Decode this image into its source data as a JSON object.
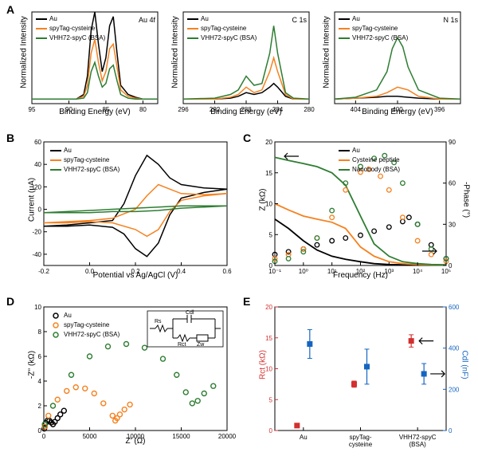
{
  "colors": {
    "au": "#000000",
    "spytag": "#f58220",
    "vhh72": "#2e7d32",
    "axis": "#000000",
    "rct": "#d32f2f",
    "cdl": "#1565c0",
    "bg": "#ffffff"
  },
  "fonts": {
    "label_size": 10,
    "tick_size": 8,
    "panel_label_size": 14,
    "legend_size": 8
  },
  "legend_labels": {
    "au": "Au",
    "spytag": "spyTag-cysteine",
    "vhh72": "VHH72-spyC (BSA)",
    "cysteine_peptide": "Cysteine peptide",
    "nanobody": "Nanobody (BSA)"
  },
  "panel_A1": {
    "label": "A",
    "type": "line",
    "title": "Au 4f",
    "xlabel": "Binding Energy (eV)",
    "ylabel": "Normalized Intensity",
    "xlim": [
      95,
      78
    ],
    "xticks": [
      95,
      90,
      85,
      80
    ],
    "series": [
      {
        "name": "au",
        "x": [
          95,
          92,
          89,
          88,
          87.5,
          87,
          86.5,
          86,
          85.5,
          85,
          84.5,
          84,
          83.5,
          83,
          82,
          81,
          80,
          78
        ],
        "y": [
          0.05,
          0.05,
          0.05,
          0.1,
          0.3,
          0.8,
          1.0,
          0.65,
          0.35,
          0.5,
          0.85,
          0.95,
          0.55,
          0.2,
          0.1,
          0.07,
          0.05,
          0.05
        ]
      },
      {
        "name": "spytag",
        "x": [
          95,
          92,
          89,
          88,
          87.5,
          87,
          86.5,
          86,
          85.5,
          85,
          84.5,
          84,
          83.5,
          83,
          82,
          81,
          80,
          78
        ],
        "y": [
          0.05,
          0.05,
          0.05,
          0.08,
          0.2,
          0.55,
          0.7,
          0.45,
          0.25,
          0.35,
          0.6,
          0.65,
          0.4,
          0.15,
          0.08,
          0.06,
          0.05,
          0.05
        ]
      },
      {
        "name": "vhh72",
        "x": [
          95,
          92,
          89,
          88,
          87.5,
          87,
          86.5,
          86,
          85.5,
          85,
          84.5,
          84,
          83.5,
          83,
          82,
          81,
          80,
          78
        ],
        "y": [
          0.05,
          0.05,
          0.05,
          0.06,
          0.12,
          0.35,
          0.45,
          0.3,
          0.18,
          0.22,
          0.38,
          0.42,
          0.25,
          0.1,
          0.06,
          0.05,
          0.05,
          0.05
        ]
      }
    ]
  },
  "panel_A2": {
    "type": "line",
    "title": "C 1s",
    "xlabel": "Binding Energy (eV)",
    "xlim": [
      296,
      280
    ],
    "xticks": [
      296,
      292,
      288,
      284,
      280
    ],
    "series": [
      {
        "name": "au",
        "x": [
          296,
          292,
          290,
          289,
          288,
          287,
          286,
          285,
          284.5,
          284,
          283,
          282,
          280
        ],
        "y": [
          0.05,
          0.05,
          0.06,
          0.08,
          0.12,
          0.1,
          0.12,
          0.18,
          0.22,
          0.18,
          0.08,
          0.05,
          0.05
        ]
      },
      {
        "name": "spytag",
        "x": [
          296,
          292,
          290,
          289,
          288,
          287,
          286,
          285,
          284.5,
          284,
          283,
          282,
          280
        ],
        "y": [
          0.05,
          0.05,
          0.07,
          0.1,
          0.18,
          0.12,
          0.15,
          0.35,
          0.5,
          0.35,
          0.1,
          0.05,
          0.05
        ]
      },
      {
        "name": "vhh72",
        "x": [
          296,
          292,
          290,
          289,
          288,
          287,
          286,
          285,
          284.5,
          284,
          283,
          282,
          280
        ],
        "y": [
          0.05,
          0.06,
          0.1,
          0.15,
          0.3,
          0.2,
          0.22,
          0.55,
          0.85,
          0.55,
          0.12,
          0.06,
          0.05
        ]
      }
    ]
  },
  "panel_A3": {
    "type": "line",
    "title": "N 1s",
    "xlabel": "Binding Energy (eV)",
    "xlim": [
      406,
      394
    ],
    "xticks": [
      404,
      400,
      396
    ],
    "series": [
      {
        "name": "au",
        "x": [
          406,
          404,
          402,
          401,
          400,
          399,
          398,
          396,
          394
        ],
        "y": [
          0.05,
          0.06,
          0.07,
          0.08,
          0.08,
          0.07,
          0.06,
          0.05,
          0.05
        ]
      },
      {
        "name": "spytag",
        "x": [
          406,
          404,
          402,
          401,
          400,
          399,
          398,
          396,
          394
        ],
        "y": [
          0.05,
          0.06,
          0.08,
          0.12,
          0.18,
          0.15,
          0.08,
          0.05,
          0.05
        ]
      },
      {
        "name": "vhh72",
        "x": [
          406,
          404,
          402,
          401,
          400.5,
          400,
          399.5,
          399,
          398,
          396,
          394
        ],
        "y": [
          0.05,
          0.07,
          0.15,
          0.35,
          0.6,
          0.72,
          0.62,
          0.4,
          0.15,
          0.06,
          0.05
        ]
      }
    ]
  },
  "panel_B": {
    "label": "B",
    "type": "line",
    "xlabel": "Potential vs Ag/AgCl (V)",
    "ylabel": "Current (µA)",
    "xlim": [
      -0.2,
      0.6
    ],
    "ylim": [
      -50,
      60
    ],
    "xticks": [
      -0.2,
      0.0,
      0.2,
      0.4,
      0.6
    ],
    "yticks": [
      -40,
      -20,
      0,
      20,
      40,
      60
    ],
    "series": [
      {
        "name": "au",
        "x": [
          -0.2,
          -0.1,
          0,
          0.1,
          0.15,
          0.2,
          0.25,
          0.3,
          0.35,
          0.4,
          0.5,
          0.6,
          0.5,
          0.4,
          0.35,
          0.3,
          0.25,
          0.2,
          0.15,
          0.1,
          0,
          -0.1,
          -0.2
        ],
        "y": [
          -15,
          -14,
          -12,
          -10,
          5,
          30,
          48,
          40,
          28,
          22,
          19,
          18,
          15,
          10,
          -5,
          -30,
          -42,
          -35,
          -22,
          -16,
          -14,
          -15,
          -15
        ]
      },
      {
        "name": "spytag",
        "x": [
          -0.2,
          -0.1,
          0,
          0.1,
          0.2,
          0.25,
          0.3,
          0.35,
          0.4,
          0.5,
          0.6,
          0.5,
          0.4,
          0.35,
          0.3,
          0.25,
          0.2,
          0.1,
          0,
          -0.1,
          -0.2
        ],
        "y": [
          -12,
          -11,
          -10,
          -8,
          0,
          12,
          22,
          18,
          14,
          13,
          14,
          12,
          8,
          -2,
          -18,
          -24,
          -18,
          -12,
          -11,
          -12,
          -12
        ]
      },
      {
        "name": "vhh72",
        "x": [
          -0.2,
          -0.1,
          0,
          0.1,
          0.2,
          0.3,
          0.4,
          0.5,
          0.6,
          0.5,
          0.4,
          0.3,
          0.2,
          0.1,
          0,
          -0.1,
          -0.2
        ],
        "y": [
          -3,
          -2,
          -1,
          0,
          1,
          2,
          3,
          3,
          3,
          2,
          1,
          -1,
          -2,
          -2,
          -3,
          -3,
          -3
        ]
      }
    ]
  },
  "panel_C": {
    "label": "C",
    "type": "bode",
    "xlabel": "Frequency (Hz)",
    "ylabel_left": "Z (kΩ)",
    "ylabel_right": "-Phase (°)",
    "xlim": [
      0.1,
      100000
    ],
    "ylim_left": [
      0,
      20
    ],
    "ylim_right": [
      0,
      90
    ],
    "xticks": [
      0.1,
      1,
      10,
      100,
      1000,
      10000,
      100000
    ],
    "xtick_labels": [
      "10⁻¹",
      "10⁰",
      "10¹",
      "10²",
      "10³",
      "10⁴",
      "10⁵"
    ],
    "yticks_left": [
      0,
      5,
      10,
      15,
      20
    ],
    "yticks_right": [
      0,
      30,
      60,
      90
    ],
    "z_series": [
      {
        "name": "au",
        "x": [
          0.1,
          0.3,
          1,
          3,
          10,
          30,
          100,
          300,
          1000,
          3000,
          10000,
          30000,
          100000
        ],
        "y": [
          7.5,
          6,
          4,
          2.5,
          1.5,
          1,
          0.6,
          0.3,
          0.15,
          0.1,
          0.08,
          0.06,
          0.05
        ]
      },
      {
        "name": "spytag",
        "x": [
          0.1,
          0.3,
          1,
          3,
          10,
          30,
          100,
          300,
          1000,
          3000,
          10000,
          30000,
          100000
        ],
        "y": [
          10,
          9,
          8,
          7.5,
          7,
          6,
          3,
          1.5,
          0.6,
          0.3,
          0.15,
          0.1,
          0.08
        ]
      },
      {
        "name": "vhh72",
        "x": [
          0.1,
          0.3,
          1,
          3,
          10,
          30,
          100,
          300,
          1000,
          3000,
          10000,
          30000,
          100000
        ],
        "y": [
          17.5,
          17,
          16.5,
          16,
          15,
          13,
          8,
          3.5,
          1.5,
          0.6,
          0.3,
          0.15,
          0.1
        ]
      }
    ],
    "phase_series": [
      {
        "name": "au",
        "x": [
          0.1,
          0.3,
          1,
          3,
          10,
          30,
          100,
          300,
          1000,
          3000,
          5000,
          10000,
          30000,
          100000
        ],
        "y": [
          8,
          10,
          12,
          15,
          18,
          20,
          22,
          25,
          28,
          32,
          35,
          30,
          15,
          5
        ]
      },
      {
        "name": "spytag",
        "x": [
          0.1,
          0.3,
          1,
          3,
          10,
          30,
          100,
          200,
          500,
          1000,
          3000,
          10000,
          30000,
          100000
        ],
        "y": [
          5,
          8,
          12,
          20,
          35,
          55,
          68,
          70,
          65,
          55,
          35,
          18,
          8,
          3
        ]
      },
      {
        "name": "vhh72",
        "x": [
          0.1,
          0.3,
          1,
          3,
          10,
          30,
          100,
          300,
          700,
          1500,
          3000,
          10000,
          30000,
          100000
        ],
        "y": [
          3,
          5,
          10,
          20,
          40,
          60,
          72,
          78,
          80,
          75,
          60,
          30,
          12,
          5
        ]
      }
    ]
  },
  "panel_D": {
    "label": "D",
    "type": "nyquist",
    "xlabel": "Z' (Ω)",
    "ylabel": "-Z'' (kΩ)",
    "xlim": [
      0,
      20000
    ],
    "ylim": [
      0,
      10
    ],
    "xticks": [
      0,
      5000,
      10000,
      15000,
      20000
    ],
    "yticks": [
      0,
      2,
      4,
      6,
      8,
      10
    ],
    "circuit_labels": {
      "rs": "Rs",
      "cdl": "Cdl",
      "rct": "Rct",
      "zw": "Zw"
    },
    "series": [
      {
        "name": "au",
        "x": [
          50,
          100,
          200,
          400,
          600,
          800,
          1000,
          1200,
          1500,
          1800,
          2200
        ],
        "y": [
          0.15,
          0.3,
          0.6,
          0.8,
          0.8,
          0.65,
          0.5,
          0.7,
          1.0,
          1.3,
          1.6
        ]
      },
      {
        "name": "spytag",
        "x": [
          100,
          500,
          1500,
          2500,
          3500,
          4500,
          5500,
          6500,
          7500,
          7800,
          8000,
          8300,
          8800,
          9400
        ],
        "y": [
          0.3,
          1.2,
          2.5,
          3.2,
          3.5,
          3.4,
          3.0,
          2.2,
          1.2,
          0.8,
          1.0,
          1.3,
          1.7,
          2.1
        ]
      },
      {
        "name": "vhh72",
        "x": [
          100,
          1000,
          3000,
          5000,
          7000,
          9000,
          11000,
          13000,
          14500,
          15500,
          16200,
          16800,
          17500,
          18500
        ],
        "y": [
          0.5,
          2.0,
          4.5,
          6.0,
          6.8,
          7.0,
          6.7,
          5.8,
          4.5,
          3.1,
          2.2,
          2.4,
          3.0,
          3.6
        ]
      }
    ]
  },
  "panel_E": {
    "label": "E",
    "type": "scatter_dual",
    "ylabel_left": "Rct (kΩ)",
    "ylabel_right": "Cdl (nF)",
    "categories": [
      "Au",
      "spyTag-\ncysteine",
      "VHH72-spyC\n(BSA)"
    ],
    "ylim_left": [
      0,
      20
    ],
    "ylim_right": [
      0,
      600
    ],
    "yticks_left": [
      0,
      5,
      10,
      15,
      20
    ],
    "yticks_right": [
      0,
      200,
      400,
      600
    ],
    "rct": {
      "values": [
        0.8,
        7.5,
        14.5
      ],
      "errors": [
        0.3,
        0.5,
        1.0
      ],
      "color": "#d32f2f",
      "marker": "square"
    },
    "cdl": {
      "values": [
        420,
        310,
        275
      ],
      "errors": [
        70,
        85,
        50
      ],
      "color": "#1565c0",
      "marker": "square"
    }
  }
}
